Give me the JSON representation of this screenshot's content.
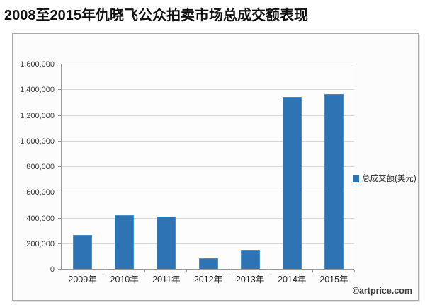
{
  "page": {
    "title": "2008至2015年仇晓飞公众拍卖市场总成交额表现",
    "watermark": "©artprice.com"
  },
  "legend": {
    "label": "总成交额(美元)"
  },
  "colors": {
    "bar_fill": "#2e74b4",
    "bar_border": "#4a8ec7",
    "gridline": "#d7d7d7",
    "axis": "#9a9a9a"
  },
  "chart_data": {
    "type": "bar",
    "title": "2008至2015年仇晓飞公众拍卖市场总成交额表现",
    "categories": [
      "2009年",
      "2010年",
      "2011年",
      "2012年",
      "2013年",
      "2014年",
      "2015年"
    ],
    "series": [
      {
        "name": "总成交额(美元)",
        "values": [
          265000,
          420000,
          410000,
          80000,
          150000,
          1340000,
          1360000
        ]
      }
    ],
    "xlabel": "",
    "ylabel": "",
    "ylim": [
      0,
      1600000
    ],
    "ytick_interval": 200000,
    "ytick_labels": [
      "0",
      "200,000",
      "400,000",
      "600,000",
      "800,000",
      "1,000,000",
      "1,200,000",
      "1,400,000",
      "1,600,000"
    ],
    "grid": true,
    "legend_position": "right",
    "annotation": "©artprice.com"
  }
}
